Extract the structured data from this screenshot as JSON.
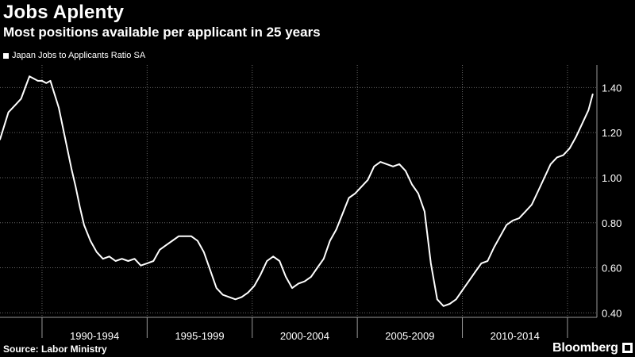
{
  "header": {
    "title": "Jobs Aplenty",
    "subtitle": "Most positions available per applicant in 25 years"
  },
  "legend": {
    "label": "Japan Jobs to Applicants Ratio SA"
  },
  "footer": {
    "source": "Source: Labor Ministry",
    "brand": "Bloomberg"
  },
  "colors": {
    "background": "#000000",
    "line": "#ffffff",
    "grid": "#666666"
  },
  "chart_data": {
    "type": "line",
    "title": "Jobs Aplenty",
    "subtitle": "Most positions available per applicant in 25 years",
    "xlabel": "",
    "ylabel": "",
    "y_axis_side": "right",
    "ylim": [
      0.38,
      1.5
    ],
    "xlim": [
      1988.0,
      2016.4
    ],
    "y_ticks": [
      0.4,
      0.6,
      0.8,
      1.0,
      1.2,
      1.4
    ],
    "y_tick_labels": [
      "0.40",
      "0.60",
      "0.80",
      "1.00",
      "1.20",
      "1.40"
    ],
    "x_period_labels": [
      {
        "label": "1990-1994",
        "from": 1990,
        "to": 1995
      },
      {
        "label": "1995-1999",
        "from": 1995,
        "to": 2000
      },
      {
        "label": "2000-2004",
        "from": 2000,
        "to": 2005
      },
      {
        "label": "2005-2009",
        "from": 2005,
        "to": 2010
      },
      {
        "label": "2010-2014",
        "from": 2010,
        "to": 2015
      }
    ],
    "x_boundaries": [
      1990,
      1995,
      2000,
      2005,
      2010,
      2015
    ],
    "grid": true,
    "legend_position": "top-left",
    "series": [
      {
        "name": "Japan Jobs to Applicants Ratio SA",
        "x": [
          1988.0,
          1988.2,
          1988.4,
          1988.6,
          1988.8,
          1989.0,
          1989.2,
          1989.4,
          1989.6,
          1989.8,
          1990.0,
          1990.2,
          1990.4,
          1990.6,
          1990.8,
          1991.0,
          1991.2,
          1991.4,
          1991.6,
          1991.8,
          1992.0,
          1992.3,
          1992.6,
          1992.9,
          1993.2,
          1993.5,
          1993.8,
          1994.1,
          1994.4,
          1994.7,
          1995.0,
          1995.3,
          1995.6,
          1995.9,
          1996.2,
          1996.5,
          1996.8,
          1997.1,
          1997.4,
          1997.7,
          1998.0,
          1998.3,
          1998.6,
          1998.9,
          1999.2,
          1999.5,
          1999.8,
          2000.1,
          2000.4,
          2000.7,
          2001.0,
          2001.3,
          2001.6,
          2001.9,
          2002.2,
          2002.5,
          2002.8,
          2003.1,
          2003.4,
          2003.7,
          2004.0,
          2004.3,
          2004.6,
          2004.9,
          2005.2,
          2005.5,
          2005.8,
          2006.1,
          2006.4,
          2006.7,
          2007.0,
          2007.3,
          2007.6,
          2007.9,
          2008.2,
          2008.5,
          2008.8,
          2009.1,
          2009.4,
          2009.7,
          2010.0,
          2010.3,
          2010.6,
          2010.9,
          2011.2,
          2011.5,
          2011.8,
          2012.1,
          2012.4,
          2012.7,
          2013.0,
          2013.3,
          2013.6,
          2013.9,
          2014.2,
          2014.5,
          2014.8,
          2015.1,
          2015.4,
          2015.7,
          2016.0,
          2016.2
        ],
        "values": [
          1.17,
          1.23,
          1.29,
          1.31,
          1.33,
          1.35,
          1.4,
          1.45,
          1.44,
          1.43,
          1.43,
          1.42,
          1.43,
          1.37,
          1.31,
          1.22,
          1.13,
          1.04,
          0.96,
          0.87,
          0.79,
          0.72,
          0.67,
          0.64,
          0.65,
          0.63,
          0.64,
          0.63,
          0.64,
          0.61,
          0.62,
          0.63,
          0.68,
          0.7,
          0.72,
          0.74,
          0.74,
          0.74,
          0.72,
          0.67,
          0.59,
          0.51,
          0.48,
          0.47,
          0.46,
          0.47,
          0.49,
          0.52,
          0.57,
          0.63,
          0.65,
          0.63,
          0.56,
          0.51,
          0.53,
          0.54,
          0.56,
          0.6,
          0.64,
          0.72,
          0.77,
          0.84,
          0.91,
          0.93,
          0.96,
          0.99,
          1.05,
          1.07,
          1.06,
          1.05,
          1.06,
          1.03,
          0.97,
          0.93,
          0.85,
          0.62,
          0.46,
          0.43,
          0.44,
          0.46,
          0.5,
          0.54,
          0.58,
          0.62,
          0.63,
          0.69,
          0.74,
          0.79,
          0.81,
          0.82,
          0.85,
          0.88,
          0.94,
          1.0,
          1.06,
          1.09,
          1.1,
          1.13,
          1.18,
          1.24,
          1.3,
          1.37
        ]
      }
    ]
  }
}
